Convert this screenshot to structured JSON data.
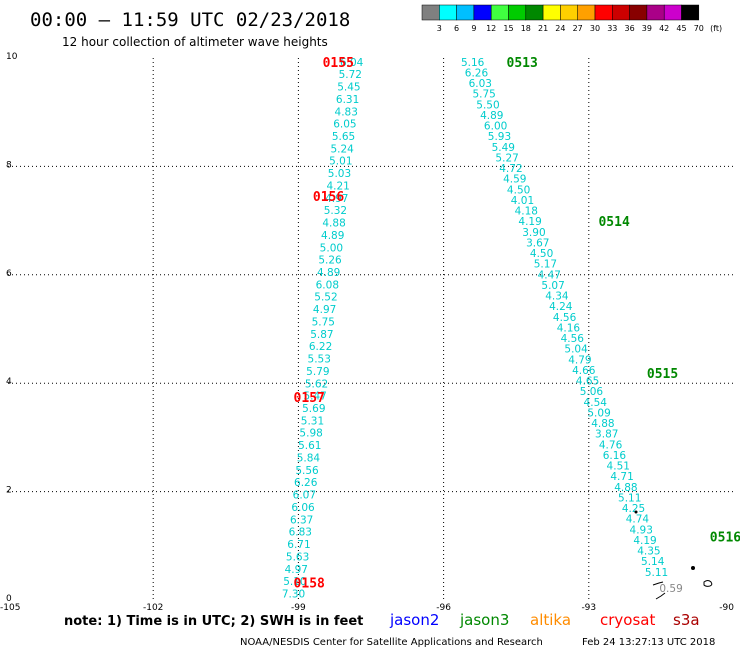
{
  "title": "00:00 – 11:59 UTC 02/23/2018",
  "subtitle": "12 hour collection of altimeter wave heights",
  "color_scale": {
    "labels": [
      "3",
      "6",
      "9",
      "12",
      "15",
      "18",
      "21",
      "24",
      "27",
      "30",
      "33",
      "36",
      "39",
      "42",
      "45",
      "70",
      "(ft)"
    ],
    "colors": [
      "#808080",
      "#00ffff",
      "#00bfff",
      "#0000ff",
      "#40ff40",
      "#00cc00",
      "#008800",
      "#ffff00",
      "#ffd000",
      "#ffa000",
      "#ff0000",
      "#cc0000",
      "#880000",
      "#aa0088",
      "#cc00cc",
      "#000000"
    ]
  },
  "note": "note: 1) Time is in UTC; 2) SWH is in feet",
  "satellites": [
    {
      "name": "jason2",
      "color": "#0000ff"
    },
    {
      "name": "jason3",
      "color": "#008800"
    },
    {
      "name": "altika",
      "color": "#ff8c00"
    },
    {
      "name": "cryosat",
      "color": "#ff0000"
    },
    {
      "name": "s3a",
      "color": "#aa0000"
    }
  ],
  "footer_left": "NOAA/NESDIS Center for Satellite Applications and Research",
  "footer_right": "Feb 24 13:27:13 UTC 2018",
  "chart_data": {
    "type": "scatter",
    "xlim": [
      -105,
      -90
    ],
    "ylim": [
      0,
      10
    ],
    "x_ticks": [
      -105,
      -102,
      -99,
      -96,
      -93,
      -90
    ],
    "x_tick_labels": [
      "-105",
      "-102",
      "-99",
      "-96",
      "-93",
      "-90"
    ],
    "y_ticks": [
      0,
      2,
      4,
      6,
      8,
      10
    ],
    "y_tick_labels": [
      "0",
      "2",
      "4",
      "6",
      "8",
      "10"
    ],
    "grid": true,
    "tracks": [
      {
        "start": [
          -97.9,
          9.93
        ],
        "end": [
          -99.1,
          0.12
        ],
        "values": [
          "6.04",
          "5.72",
          "5.45",
          "6.31",
          "4.83",
          "6.05",
          "5.65",
          "5.24",
          "5.01",
          "5.03",
          "4.21",
          "4.97",
          "5.32",
          "4.88",
          "4.89",
          "5.00",
          "5.26",
          "4.89",
          "6.08",
          "5.52",
          "4.97",
          "5.75",
          "5.87",
          "6.22",
          "5.53",
          "5.79",
          "5.62",
          "5.47",
          "5.69",
          "5.31",
          "5.98",
          "5.61",
          "5.84",
          "5.56",
          "6.26",
          "6.07",
          "6.06",
          "6.37",
          "6.83",
          "6.71",
          "5.63",
          "4.97",
          "5.10",
          "7.30"
        ],
        "color": "#00cccc"
      },
      {
        "start": [
          -95.4,
          9.93
        ],
        "end": [
          -91.6,
          0.52
        ],
        "values": [
          "5.16",
          "6.26",
          "6.03",
          "5.75",
          "5.50",
          "4.89",
          "6.00",
          "5.93",
          "5.49",
          "5.27",
          "4.72",
          "4.59",
          "4.50",
          "4.01",
          "4.18",
          "4.19",
          "3.90",
          "3.67",
          "4.50",
          "5.17",
          "4.47",
          "5.07",
          "4.34",
          "4.24",
          "4.56",
          "4.16",
          "4.56",
          "5.04",
          "4.79",
          "4.66",
          "4.65",
          "5.06",
          "4.54",
          "5.09",
          "4.88",
          "3.87",
          "4.76",
          "6.16",
          "4.51",
          "4.71",
          "4.88",
          "5.11",
          "4.25",
          "4.74",
          "4.93",
          "4.19",
          "4.35",
          "5.14",
          "5.11"
        ],
        "color": "#00cccc"
      }
    ],
    "extra_points": [
      {
        "x": -91.3,
        "y": 0.22,
        "value": "0.59",
        "color": "#888888"
      }
    ],
    "pass_labels": [
      {
        "text": "0155",
        "x": -98.5,
        "y": 9.93,
        "color": "#ff0000"
      },
      {
        "text": "0156",
        "x": -98.7,
        "y": 7.45,
        "color": "#ff0000"
      },
      {
        "text": "0157",
        "x": -99.1,
        "y": 3.75,
        "color": "#ff0000"
      },
      {
        "text": "0158",
        "x": -99.1,
        "y": 0.32,
        "color": "#ff0000"
      },
      {
        "text": "0513",
        "x": -94.7,
        "y": 9.93,
        "color": "#008800"
      },
      {
        "text": "0514",
        "x": -92.8,
        "y": 6.99,
        "color": "#008800"
      },
      {
        "text": "0515",
        "x": -91.8,
        "y": 4.19,
        "color": "#008800"
      },
      {
        "text": "0516",
        "x": -90.5,
        "y": 1.17,
        "color": "#008800"
      }
    ]
  }
}
